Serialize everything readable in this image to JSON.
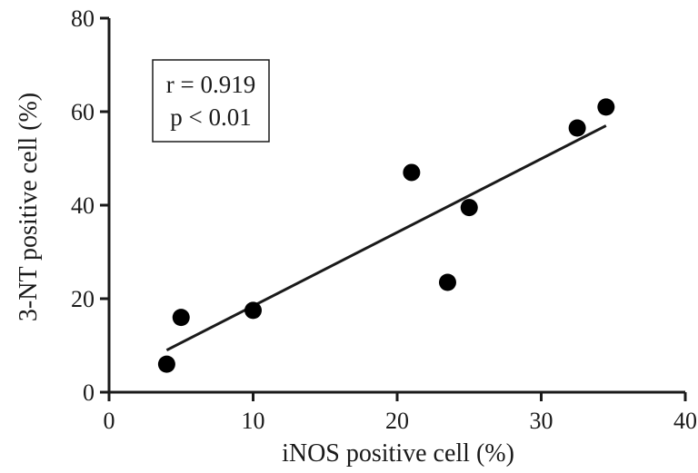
{
  "chart_data": {
    "type": "scatter",
    "xlabel": "iNOS positive cell (%)",
    "ylabel": "3-NT positive cell (%)",
    "xlim": [
      0,
      40
    ],
    "ylim": [
      0,
      80
    ],
    "x_ticks": [
      0,
      10,
      20,
      30,
      40
    ],
    "y_ticks": [
      0,
      20,
      40,
      60,
      80
    ],
    "points": [
      {
        "x": 4.0,
        "y": 6.0
      },
      {
        "x": 5.0,
        "y": 16.0
      },
      {
        "x": 10.0,
        "y": 17.5
      },
      {
        "x": 21.0,
        "y": 47.0
      },
      {
        "x": 23.5,
        "y": 23.5
      },
      {
        "x": 25.0,
        "y": 39.5
      },
      {
        "x": 32.5,
        "y": 56.5
      },
      {
        "x": 34.5,
        "y": 61.0
      }
    ],
    "regression_line": {
      "x": [
        4.0,
        34.5
      ],
      "y": [
        9.0,
        57.0
      ]
    },
    "annotation": {
      "line1": "r = 0.919",
      "line2": "p < 0.01"
    },
    "grid": false,
    "legend": "none",
    "marker_color": "#000000"
  }
}
